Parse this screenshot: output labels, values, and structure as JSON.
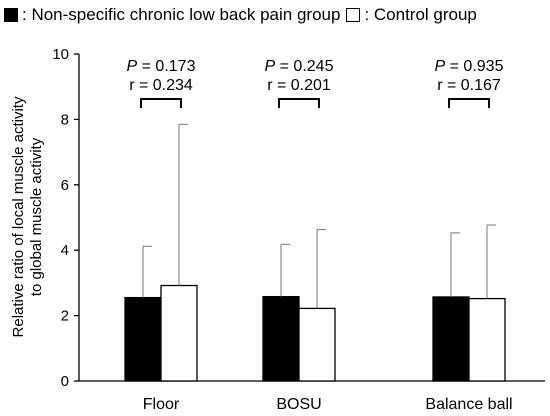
{
  "legend": {
    "items": [
      {
        "label": ": Non-specific chronic low back pain group",
        "color": "#000000"
      },
      {
        "label": ": Control group",
        "color": "#ffffff"
      }
    ]
  },
  "chart_data": {
    "type": "bar",
    "ylabel_line1": "Relative ratio of local muscle activity",
    "ylabel_line2": "to global muscle activity",
    "xlabel": "",
    "ylim": [
      0,
      10
    ],
    "yticks": [
      "0",
      "2",
      "4",
      "6",
      "8",
      "10"
    ],
    "grid": false,
    "legend_position": "top-left",
    "categories": [
      "Floor",
      "BOSU",
      "Balance ball"
    ],
    "series": [
      {
        "name": "Non-specific chronic low back pain group",
        "color": "#000000",
        "values": [
          2.55,
          2.58,
          2.57
        ],
        "error_upper": [
          4.12,
          4.18,
          4.53
        ]
      },
      {
        "name": "Control group",
        "color": "#ffffff",
        "values": [
          2.92,
          2.22,
          2.52
        ],
        "error_upper": [
          7.85,
          4.63,
          4.77
        ]
      }
    ],
    "annotations": [
      {
        "p_label": "P = 0.173",
        "r_label": "r = 0.234"
      },
      {
        "p_label": "P = 0.245",
        "r_label": "r = 0.201"
      },
      {
        "p_label": "P = 0.935",
        "r_label": "r = 0.167"
      }
    ]
  }
}
